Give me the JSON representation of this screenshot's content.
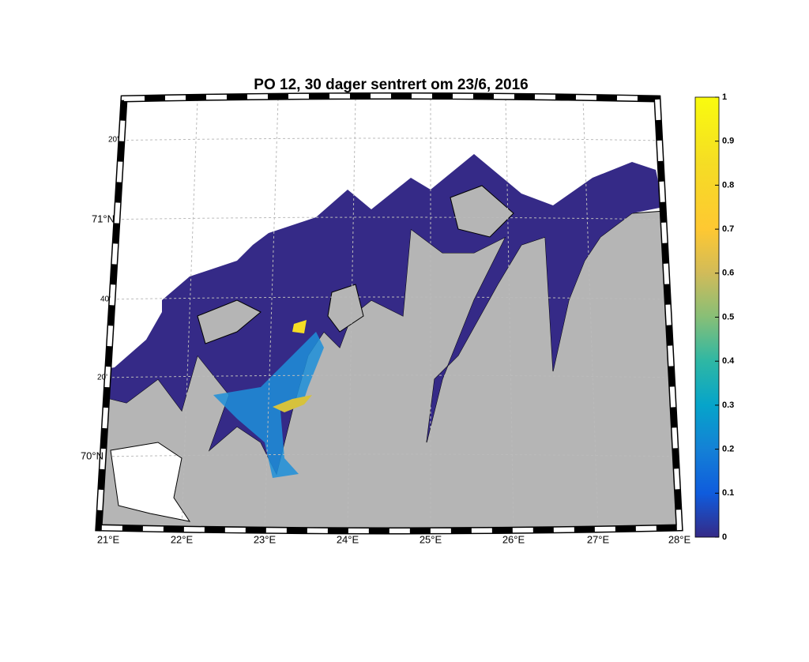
{
  "title": "PO 12, 30 dager sentrert om 23/6, 2016",
  "map": {
    "lon_labels": [
      "21°E",
      "22°E",
      "23°E",
      "24°E",
      "25°E",
      "26°E",
      "27°E",
      "28°E"
    ],
    "lat_labels": [
      "20'",
      "71°N",
      "40'",
      "20'",
      "70°N"
    ]
  },
  "colorbar": {
    "lim": [
      0,
      1
    ],
    "ticks": [
      0,
      0.1,
      0.2,
      0.3,
      0.4,
      0.5,
      0.6,
      0.7,
      0.8,
      0.9,
      1
    ]
  }
}
